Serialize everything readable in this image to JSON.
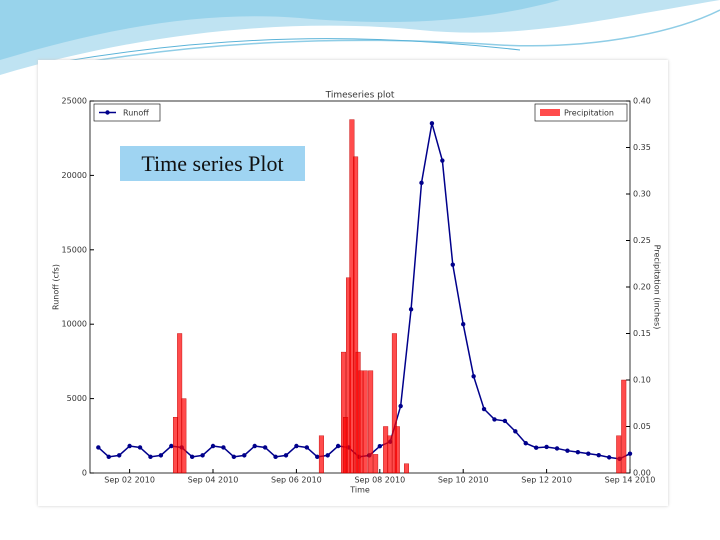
{
  "slide_caption": "Time series Plot",
  "chart_data": {
    "type": "timeseries",
    "title": "Timeseries plot",
    "xlabel": "Time",
    "ylabel": "Runoff (cfs)",
    "y2label": "Precipitation (inches)",
    "xlim": [
      1.05,
      14.0
    ],
    "xticks": [
      {
        "value": 2,
        "label": "Sep 02 2010"
      },
      {
        "value": 4,
        "label": "Sep 04 2010"
      },
      {
        "value": 6,
        "label": "Sep 06 2010"
      },
      {
        "value": 8,
        "label": "Sep 08 2010"
      },
      {
        "value": 10,
        "label": "Sep 10 2010"
      },
      {
        "value": 12,
        "label": "Sep 12 2010"
      },
      {
        "value": 14,
        "label": "Sep 14 2010"
      }
    ],
    "ylim": [
      0,
      25000
    ],
    "yticks": [
      0,
      5000,
      10000,
      15000,
      20000,
      25000
    ],
    "y2lim": [
      0,
      0.4
    ],
    "y2ticks": [
      {
        "value": 0,
        "label": "0.00"
      },
      0.05,
      {
        "value": 0.1,
        "label": "0.10"
      },
      0.15,
      {
        "value": 0.2,
        "label": "0.20"
      },
      0.25,
      {
        "value": 0.3,
        "label": "0.30"
      },
      0.35,
      {
        "value": 0.4,
        "label": "0.40"
      }
    ],
    "series": [
      {
        "name": "Runoff",
        "kind": "line",
        "color": "#00008b",
        "legend": "upper left",
        "x": [
          1.25,
          1.5,
          1.75,
          2.0,
          2.25,
          2.5,
          2.75,
          3.0,
          3.25,
          3.5,
          3.75,
          4.0,
          4.25,
          4.5,
          4.75,
          5.0,
          5.25,
          5.5,
          5.75,
          6.0,
          6.25,
          6.5,
          6.75,
          7.0,
          7.25,
          7.5,
          7.75,
          8.0,
          8.25,
          8.5,
          8.75,
          9.0,
          9.25,
          9.5,
          9.75,
          10.0,
          10.25,
          10.5,
          10.75,
          11.0,
          11.25,
          11.5,
          11.75,
          12.0,
          12.25,
          12.5,
          12.75,
          13.0,
          13.25,
          13.5,
          13.75,
          14.0
        ],
        "values": [
          1715,
          1086,
          1185,
          1814,
          1715,
          1086,
          1185,
          1814,
          1715,
          1086,
          1185,
          1814,
          1715,
          1086,
          1185,
          1814,
          1715,
          1086,
          1185,
          1814,
          1715,
          1086,
          1185,
          1814,
          1715,
          1086,
          1185,
          1800,
          2100,
          4500,
          11000,
          19500,
          23500,
          21000,
          14000,
          10000,
          6500,
          4300,
          3600,
          3500,
          2800,
          2000,
          1700,
          1750,
          1650,
          1500,
          1400,
          1300,
          1200,
          1050,
          950,
          1300
        ]
      },
      {
        "name": "Precipitation",
        "kind": "bar",
        "axis": "y2",
        "color": "#ff0000",
        "legend": "upper right",
        "x": [
          3.1,
          3.2,
          3.3,
          6.6,
          7.13,
          7.18,
          7.25,
          7.33,
          7.42,
          7.48,
          7.55,
          7.65,
          7.78,
          7.9,
          8.14,
          8.24,
          8.35,
          8.42,
          8.64,
          13.73,
          13.85
        ],
        "values": [
          0.06,
          0.15,
          0.08,
          0.04,
          0.13,
          0.06,
          0.21,
          0.38,
          0.34,
          0.13,
          0.11,
          0.11,
          0.11,
          0.02,
          0.05,
          0.04,
          0.15,
          0.05,
          0.01,
          0.04,
          0.1
        ]
      }
    ]
  }
}
